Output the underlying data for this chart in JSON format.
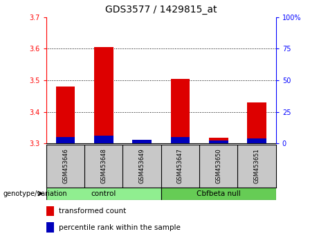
{
  "title": "GDS3577 / 1429815_at",
  "samples": [
    "GSM453646",
    "GSM453648",
    "GSM453649",
    "GSM453647",
    "GSM453650",
    "GSM453651"
  ],
  "transformed_counts": [
    3.48,
    3.605,
    3.305,
    3.505,
    3.318,
    3.43
  ],
  "percentile_ranks": [
    5,
    6,
    3,
    5,
    2,
    4
  ],
  "ylim_left": [
    3.3,
    3.7
  ],
  "ylim_right": [
    0,
    100
  ],
  "yticks_left": [
    3.3,
    3.4,
    3.5,
    3.6,
    3.7
  ],
  "yticks_right": [
    0,
    25,
    50,
    75,
    100
  ],
  "ytick_labels_right": [
    "0",
    "25",
    "50",
    "75",
    "100%"
  ],
  "bar_width": 0.5,
  "red_color": "#DD0000",
  "blue_color": "#0000BB",
  "control_color": "#90EE90",
  "null_color": "#66CC55",
  "gray_color": "#C8C8C8",
  "baseline": 3.3,
  "legend_items": [
    "transformed count",
    "percentile rank within the sample"
  ],
  "title_fontsize": 10,
  "tick_fontsize": 7,
  "label_fontsize": 7.5
}
